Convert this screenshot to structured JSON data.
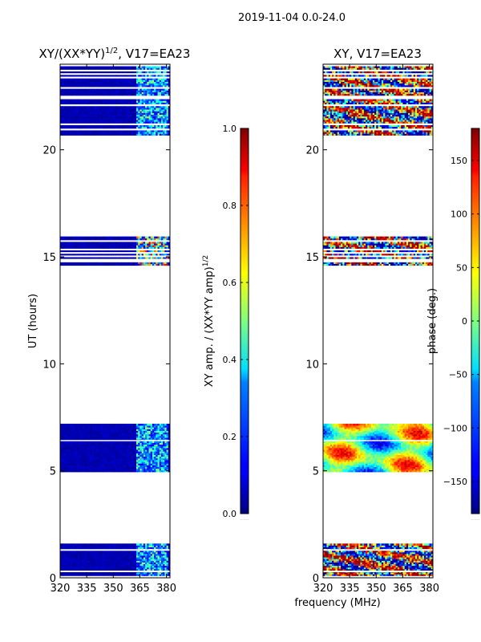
{
  "figure": {
    "suptitle": "2019-11-04 0.0-24.0",
    "xlabel": "frequency (MHz)"
  },
  "chart_data": [
    {
      "type": "heatmap",
      "title_main": "XY/(XX*YY)",
      "title_exp": "1/2",
      "title_suffix": ", V17=EA23",
      "xlabel": "frequency (MHz)",
      "ylabel": "UT (hours)",
      "xlim": [
        320,
        382
      ],
      "ylim": [
        0,
        24
      ],
      "xticks": [
        "320",
        "335",
        "350",
        "365",
        "380"
      ],
      "xtick_values": [
        320,
        335,
        350,
        365,
        380
      ],
      "yticks": [
        "0",
        "5",
        "10",
        "15",
        "20"
      ],
      "ytick_values": [
        0,
        5,
        10,
        15,
        20
      ],
      "data_intervals_ut": [
        [
          0.1,
          1.6
        ],
        [
          4.95,
          7.2
        ],
        [
          14.6,
          15.95
        ],
        [
          20.6,
          24.0
        ]
      ],
      "colormap": "jet",
      "colorbar": {
        "label_main": "XY amp. / (XX*YY amp)",
        "label_exp": "1/2",
        "range": [
          0.0,
          1.0
        ],
        "ticks": [
          "0.0",
          "0.2",
          "0.4",
          "0.6",
          "0.8",
          "1.0"
        ],
        "tick_values": [
          0.0,
          0.2,
          0.4,
          0.6,
          0.8,
          1.0
        ]
      }
    },
    {
      "type": "heatmap",
      "title": "XY, V17=EA23",
      "xlabel": "frequency (MHz)",
      "xlim": [
        320,
        382
      ],
      "ylim": [
        0,
        24
      ],
      "xticks": [
        "320",
        "335",
        "350",
        "365",
        "380"
      ],
      "xtick_values": [
        320,
        335,
        350,
        365,
        380
      ],
      "yticks": [
        "0",
        "5",
        "10",
        "15",
        "20"
      ],
      "ytick_values": [
        0,
        5,
        10,
        15,
        20
      ],
      "data_intervals_ut": [
        [
          0.1,
          1.6
        ],
        [
          4.95,
          7.2
        ],
        [
          14.6,
          15.95
        ],
        [
          20.6,
          24.0
        ]
      ],
      "colormap": "jet",
      "colorbar": {
        "label": "phase (deg.)",
        "range": [
          -180,
          180
        ],
        "ticks": [
          "−150",
          "−100",
          "−50",
          "0",
          "50",
          "100",
          "150"
        ],
        "tick_values": [
          -150,
          -100,
          -50,
          0,
          50,
          100,
          150
        ]
      }
    }
  ]
}
